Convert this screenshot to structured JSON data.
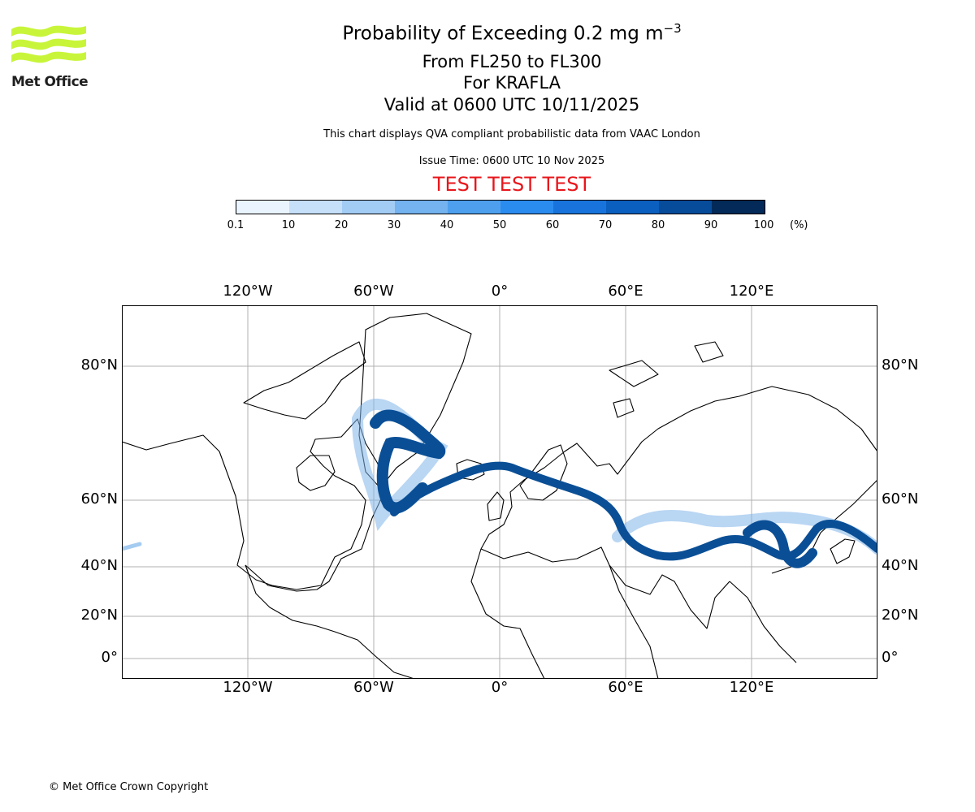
{
  "header": {
    "title_main": "Probability of Exceeding 0.2 mg m",
    "title_exponent": "−3",
    "level_range": "From FL250 to FL300",
    "volcano": "For KRAFLA",
    "valid_time": "Valid at 0600 UTC 10/11/2025",
    "description": "This chart displays QVA compliant probabilistic data from VAAC London",
    "issue_time": "Issue Time: 0600 UTC 10 Nov 2025",
    "test_banner": "TEST TEST TEST"
  },
  "logo": {
    "text": "Met Office",
    "color": "#c8f53a"
  },
  "colorbar": {
    "ticks": [
      "0.1",
      "10",
      "20",
      "30",
      "40",
      "50",
      "60",
      "70",
      "80",
      "90",
      "100"
    ],
    "unit": "(%)",
    "colors": [
      "#eaf4ff",
      "#c6e0fa",
      "#a3ccf5",
      "#74b2f0",
      "#4ea0ef",
      "#2b8cf0",
      "#1874dc",
      "#0b5fbe",
      "#074c9a",
      "#053b78",
      "#032a58"
    ]
  },
  "map": {
    "lon_labels": [
      "120°W",
      "60°W",
      "0°",
      "60°E",
      "120°E"
    ],
    "lat_labels": [
      "80°N",
      "60°N",
      "40°N",
      "20°N",
      "0°"
    ],
    "lons": [
      -120,
      -60,
      0,
      60,
      120
    ],
    "lats": [
      80,
      60,
      40,
      20,
      0
    ],
    "plume_color": "#0a4f96",
    "fringe_color": "#7fb5ea"
  },
  "footer": {
    "copyright": "© Met Office Crown Copyright"
  }
}
